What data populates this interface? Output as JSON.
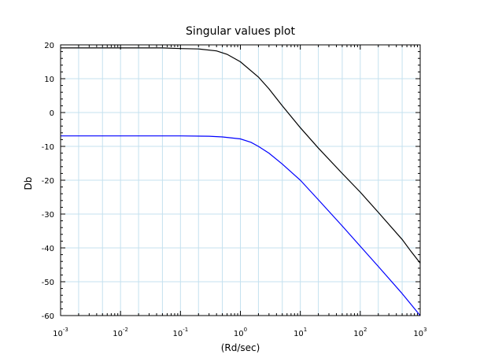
{
  "chart_data": {
    "type": "line",
    "title": "Singular values plot",
    "xlabel": "(Rd/sec)",
    "ylabel": "Db",
    "xscale": "log",
    "xlim": [
      0.001,
      1000
    ],
    "ylim": [
      -60,
      20
    ],
    "grid": true,
    "legend": "none",
    "x_ticks": [
      {
        "base": "10",
        "exp": "-3",
        "value": 0.001
      },
      {
        "base": "10",
        "exp": "-2",
        "value": 0.01
      },
      {
        "base": "10",
        "exp": "-1",
        "value": 0.1
      },
      {
        "base": "10",
        "exp": "0",
        "value": 1
      },
      {
        "base": "10",
        "exp": "1",
        "value": 10
      },
      {
        "base": "10",
        "exp": "2",
        "value": 100
      },
      {
        "base": "10",
        "exp": "3",
        "value": 1000
      }
    ],
    "y_ticks": [
      "20",
      "10",
      "0",
      "-10",
      "-20",
      "-30",
      "-40",
      "-50",
      "-60"
    ],
    "series": [
      {
        "color": "#000000",
        "points": [
          [
            0.001,
            19.1
          ],
          [
            0.01,
            19.1
          ],
          [
            0.05,
            19.1
          ],
          [
            0.1,
            18.9
          ],
          [
            0.2,
            18.8
          ],
          [
            0.4,
            18.2
          ],
          [
            0.6,
            17.2
          ],
          [
            1,
            15.0
          ],
          [
            2,
            10.5
          ],
          [
            3,
            7.0
          ],
          [
            5,
            2.0
          ],
          [
            10,
            -4.5
          ],
          [
            20,
            -10.5
          ],
          [
            50,
            -18.0
          ],
          [
            100,
            -23.5
          ],
          [
            200,
            -29.5
          ],
          [
            500,
            -37.5
          ],
          [
            700,
            -41.0
          ],
          [
            1000,
            -44.5
          ]
        ]
      },
      {
        "color": "#0000ff",
        "points": [
          [
            0.001,
            -6.9
          ],
          [
            0.01,
            -6.9
          ],
          [
            0.1,
            -6.9
          ],
          [
            0.3,
            -7.0
          ],
          [
            0.5,
            -7.2
          ],
          [
            1,
            -7.8
          ],
          [
            1.5,
            -8.8
          ],
          [
            2,
            -10.0
          ],
          [
            3,
            -12.0
          ],
          [
            5,
            -15.2
          ],
          [
            10,
            -20.0
          ],
          [
            20,
            -25.8
          ],
          [
            50,
            -33.5
          ],
          [
            100,
            -39.5
          ],
          [
            200,
            -45.5
          ],
          [
            500,
            -53.5
          ],
          [
            1000,
            -60.0
          ]
        ]
      }
    ]
  }
}
